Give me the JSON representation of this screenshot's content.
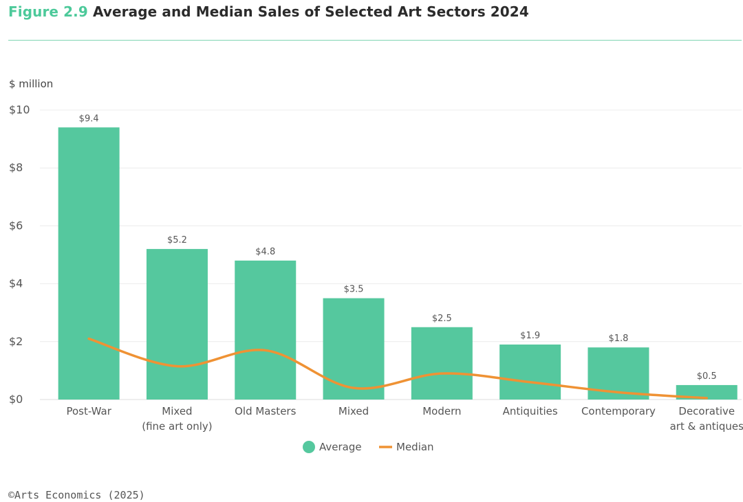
{
  "header": {
    "figure_label": "Figure 2.9",
    "title": "Average and Median Sales of Selected Art Sectors 2024"
  },
  "footer": {
    "source": "©Arts Economics (2025)"
  },
  "colors": {
    "average": "#55c89e",
    "median": "#ef9234",
    "title_accent": "#4cc99a",
    "grid": "#ececec"
  },
  "chart_data": {
    "type": "bar",
    "title": "Average and Median Sales of Selected Art Sectors 2024",
    "ylabel": "$ million",
    "ylim": [
      0,
      10
    ],
    "yticks": [
      0,
      2,
      4,
      6,
      8,
      10
    ],
    "ytick_labels": [
      "$0",
      "$2",
      "$4",
      "$6",
      "$8",
      "$10"
    ],
    "grid": true,
    "legend_position": "bottom-center",
    "categories": [
      [
        "Post-War"
      ],
      [
        "Mixed",
        "(fine art only)"
      ],
      [
        "Old Masters"
      ],
      [
        "Mixed"
      ],
      [
        "Modern"
      ],
      [
        "Antiquities"
      ],
      [
        "Contemporary"
      ],
      [
        "Decorative",
        "art & antiques"
      ]
    ],
    "series": [
      {
        "name": "Average",
        "type": "bar",
        "values": [
          9.4,
          5.2,
          4.8,
          3.5,
          2.5,
          1.9,
          1.8,
          0.5
        ],
        "labels": [
          "$9.4",
          "$5.2",
          "$4.8",
          "$3.5",
          "$2.5",
          "$1.9",
          "$1.8",
          "$0.5"
        ]
      },
      {
        "name": "Median",
        "type": "line",
        "values": [
          2.1,
          1.15,
          1.7,
          0.4,
          0.9,
          0.6,
          0.25,
          0.05
        ]
      }
    ]
  }
}
